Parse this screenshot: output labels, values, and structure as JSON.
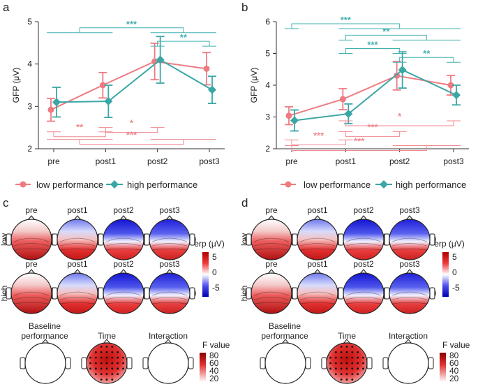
{
  "colors": {
    "low": "#ee7b82",
    "high": "#3aa7a6",
    "sig_low": "#f08a90",
    "sig_high": "#43b0b0",
    "neg": "#2929e6",
    "pos": "#cc1a1a"
  },
  "panels": {
    "a": "a",
    "b": "b",
    "c": "c",
    "d": "d"
  },
  "chart_data": [
    {
      "panel": "a",
      "type": "line",
      "categories": [
        "pre",
        "post1",
        "post2",
        "post3"
      ],
      "ylabel": "GFP (μV)",
      "ylim": [
        2,
        5
      ],
      "yticks": [
        2,
        3,
        4,
        5
      ],
      "series": [
        {
          "name": "low performance",
          "values": [
            2.92,
            3.5,
            4.06,
            3.89
          ],
          "err": [
            0.27,
            0.3,
            0.43,
            0.38
          ]
        },
        {
          "name": "high performance",
          "values": [
            3.1,
            3.12,
            4.1,
            3.39
          ],
          "err": [
            0.35,
            0.38,
            0.55,
            0.32
          ]
        }
      ],
      "significance": [
        {
          "group": "high",
          "label": "***",
          "y": 4.74,
          "from": [
            0,
            1
          ],
          "to": [
            2,
            3
          ]
        },
        {
          "group": "high",
          "label": "**",
          "y": 4.42,
          "from": [
            2,
            2
          ],
          "to": [
            3,
            3
          ]
        },
        {
          "group": "low",
          "label": "**",
          "y": 2.4,
          "from": [
            0,
            0
          ],
          "to": [
            1,
            1
          ]
        },
        {
          "group": "low",
          "label": "*",
          "y": 2.5,
          "from": [
            1,
            1
          ],
          "to": [
            2,
            2
          ]
        },
        {
          "group": "low",
          "label": "***",
          "y": 2.22,
          "from": [
            0,
            1
          ],
          "to": [
            2,
            3
          ]
        }
      ],
      "legend": [
        "low performance",
        "high performance"
      ]
    },
    {
      "panel": "b",
      "type": "line",
      "categories": [
        "pre",
        "post1",
        "post2",
        "post3"
      ],
      "ylabel": "GFP (μV)",
      "ylim": [
        2,
        6
      ],
      "yticks": [
        2,
        3,
        4,
        5,
        6
      ],
      "series": [
        {
          "name": "low performance",
          "values": [
            3.04,
            3.56,
            4.3,
            4.0
          ],
          "err": [
            0.28,
            0.33,
            0.45,
            0.31
          ]
        },
        {
          "name": "high performance",
          "values": [
            2.89,
            3.1,
            4.48,
            3.69
          ],
          "err": [
            0.33,
            0.31,
            0.57,
            0.31
          ]
        }
      ],
      "significance": [
        {
          "group": "high",
          "label": "***",
          "y": 5.78,
          "from": [
            0,
            0
          ],
          "to": [
            1,
            2,
            3
          ]
        },
        {
          "group": "high",
          "label": "**",
          "y": 5.42,
          "from": [
            1,
            1
          ],
          "to": [
            2,
            3
          ]
        },
        {
          "group": "high",
          "label": "***",
          "y": 5.0,
          "from": [
            1,
            1
          ],
          "to": [
            2,
            2
          ]
        },
        {
          "group": "high",
          "label": "**",
          "y": 4.72,
          "from": [
            2,
            2
          ],
          "to": [
            3,
            3
          ]
        },
        {
          "group": "low",
          "label": "*",
          "y": 2.88,
          "from": [
            1,
            1
          ],
          "to": [
            3,
            3
          ]
        },
        {
          "group": "low",
          "label": "***",
          "y": 2.54,
          "from": [
            1,
            1
          ],
          "to": [
            2,
            2
          ]
        },
        {
          "group": "low",
          "label": "***",
          "y": 2.28,
          "from": [
            0,
            0
          ],
          "to": [
            1,
            1
          ]
        },
        {
          "group": "low",
          "label": "***",
          "y": 2.1,
          "from": [
            0,
            0
          ],
          "to": [
            2,
            3
          ]
        }
      ],
      "legend": [
        "low performance",
        "high performance"
      ]
    }
  ],
  "topomaps": {
    "conditions": [
      "pre",
      "post1",
      "post2",
      "post3"
    ],
    "groups": [
      "low",
      "high"
    ],
    "erp_label": "erp (μV)",
    "erp_ticks": [
      "5",
      "0",
      "-5"
    ],
    "f_label": "F value",
    "f_ticks": [
      "80",
      "60",
      "40",
      "20"
    ],
    "effects": [
      "Baseline\nperformance",
      "Time",
      "Interaction"
    ],
    "effect_titles": {
      "baseline": "Baseline",
      "baseline2": "performance",
      "time": "Time",
      "interaction": "Interaction"
    }
  }
}
